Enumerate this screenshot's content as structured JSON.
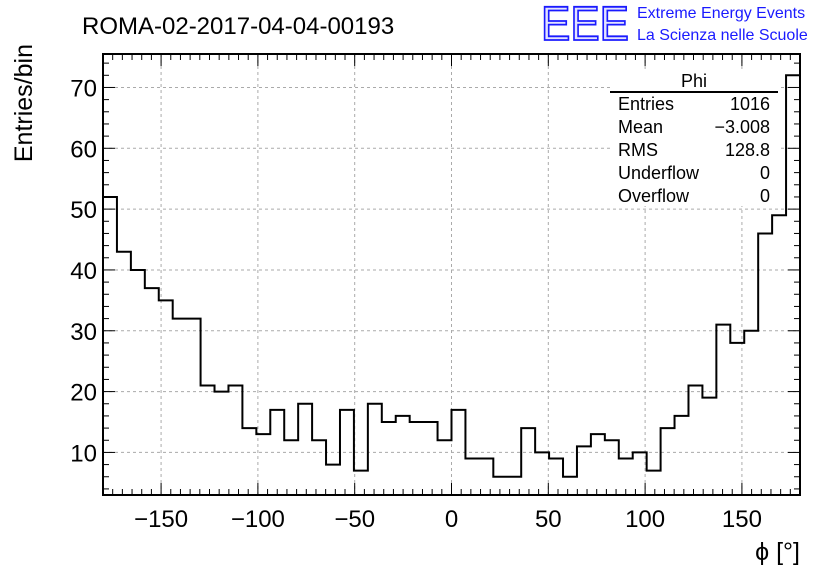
{
  "chart_data": {
    "type": "bar",
    "title": "ROMA-02-2017-04-04-00193",
    "xlabel": "ϕ [°]",
    "ylabel": "Entries/bin",
    "xlim": [
      -180,
      180
    ],
    "ylim": [
      3,
      75.5
    ],
    "x_ticks": [
      -150,
      -100,
      -50,
      0,
      50,
      100,
      150
    ],
    "y_ticks": [
      10,
      20,
      30,
      40,
      50,
      60,
      70
    ],
    "x_tick_labels": [
      "−150",
      "−100",
      "−50",
      "0",
      "50",
      "100",
      "150"
    ],
    "y_tick_labels": [
      "10",
      "20",
      "30",
      "40",
      "50",
      "60",
      "70"
    ],
    "grid": true,
    "bin_edges_start": -180,
    "bin_width": 7.2,
    "values": [
      52,
      43,
      40,
      37,
      35,
      32,
      32,
      21,
      20,
      21,
      14,
      13,
      17,
      12,
      18,
      12,
      8,
      17,
      7,
      18,
      15,
      16,
      15,
      15,
      12,
      17,
      9,
      9,
      6,
      6,
      14,
      10,
      9,
      6,
      11,
      13,
      12,
      9,
      10,
      7,
      14,
      16,
      21,
      19,
      31,
      28,
      30,
      46,
      49,
      72
    ],
    "line_color": "#000000",
    "stats_box": {
      "title": "Phi",
      "rows": [
        {
          "label": "Entries",
          "value": "1016"
        },
        {
          "label": "Mean",
          "value": "−3.008"
        },
        {
          "label": "RMS",
          "value": "128.8"
        },
        {
          "label": "Underflow",
          "value": "0"
        },
        {
          "label": "Overflow",
          "value": "0"
        }
      ]
    }
  },
  "logo": {
    "text": "EEE",
    "line1": "Extreme Energy Events",
    "line2": "La Scienza nelle Scuole",
    "color": "#1a1aff"
  }
}
